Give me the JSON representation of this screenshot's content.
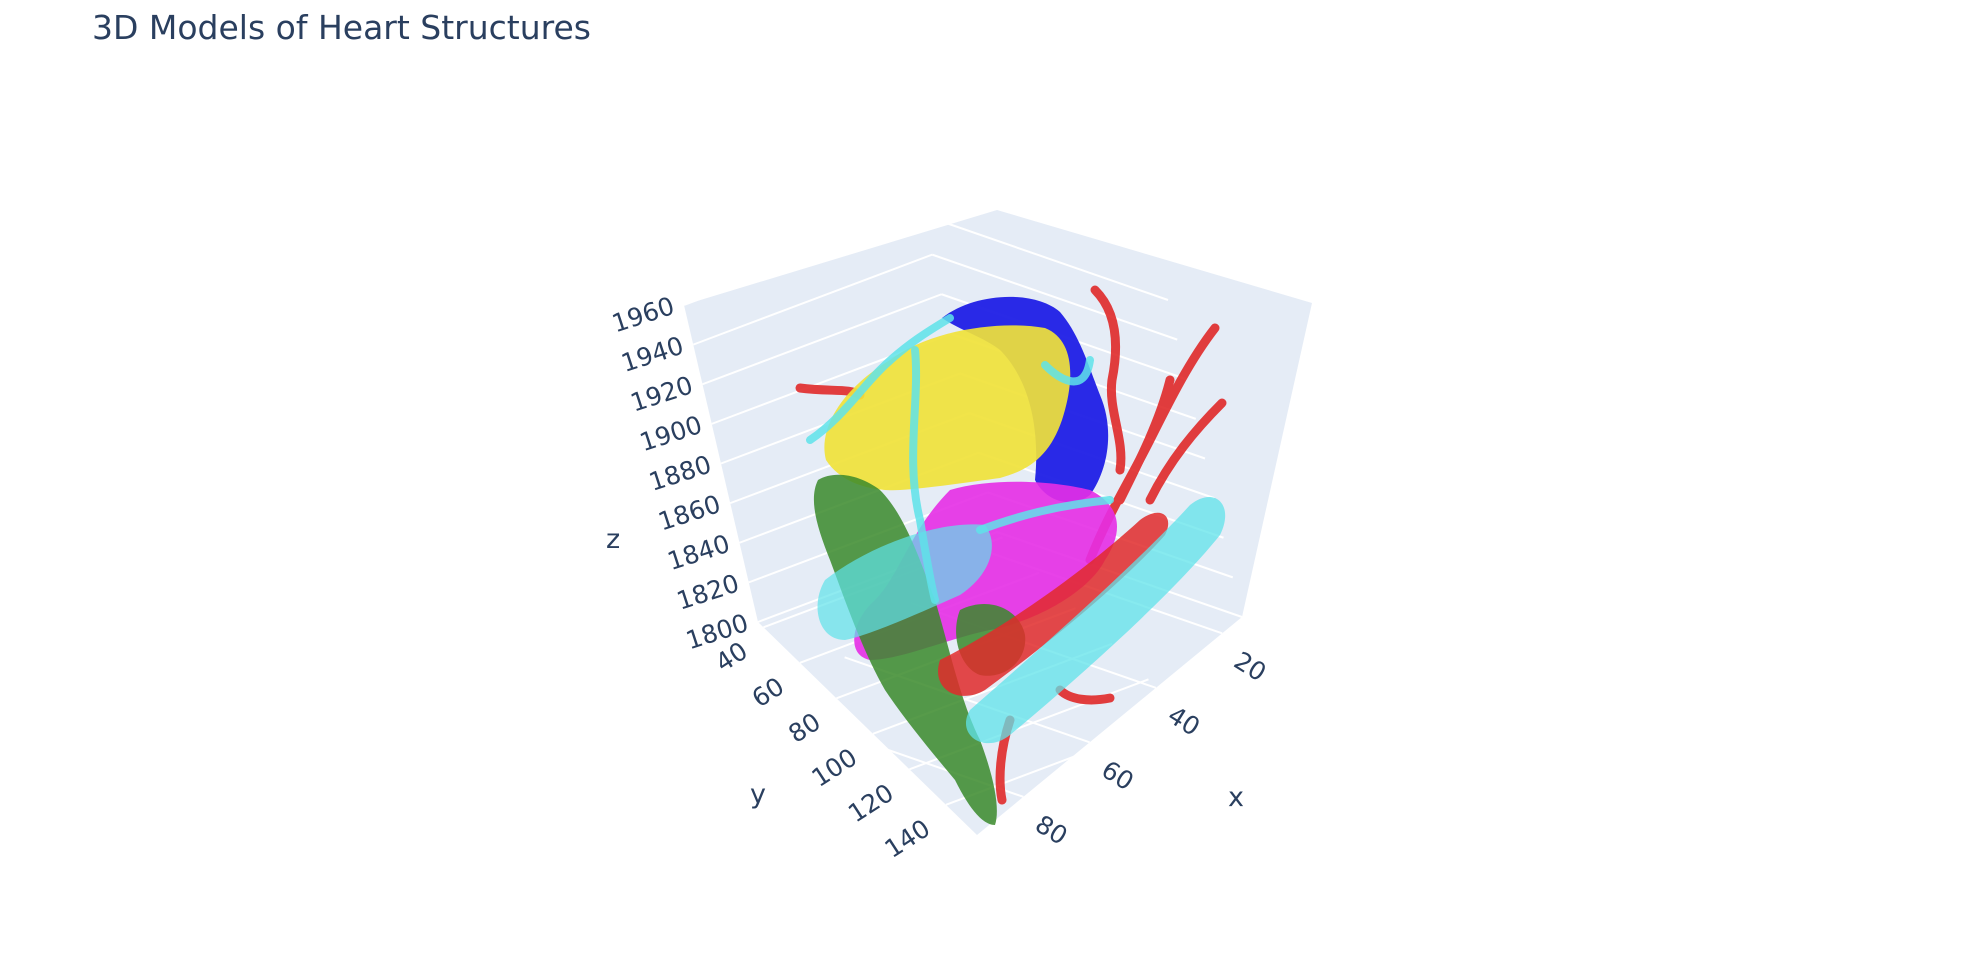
{
  "chart_data": {
    "type": "mesh3d",
    "title": "3D Models of Heart Structures",
    "axes": {
      "x": {
        "label": "x",
        "ticks": [
          "20",
          "40",
          "60",
          "80"
        ]
      },
      "y": {
        "label": "y",
        "ticks": [
          "40",
          "60",
          "80",
          "100",
          "120",
          "140"
        ]
      },
      "z": {
        "label": "z",
        "ticks": [
          "1800",
          "1820",
          "1840",
          "1860",
          "1880",
          "1900",
          "1920",
          "1940",
          "1960"
        ],
        "range": [
          1800,
          1960
        ]
      }
    },
    "background": "#e5ecf6",
    "structures": [
      {
        "color": "#1f1fe6"
      },
      {
        "color": "#f0e23a"
      },
      {
        "color": "#e62ee6"
      },
      {
        "color": "#3a8a2a"
      },
      {
        "color": "#e02a2a"
      },
      {
        "color": "#5fe3ea"
      }
    ]
  }
}
